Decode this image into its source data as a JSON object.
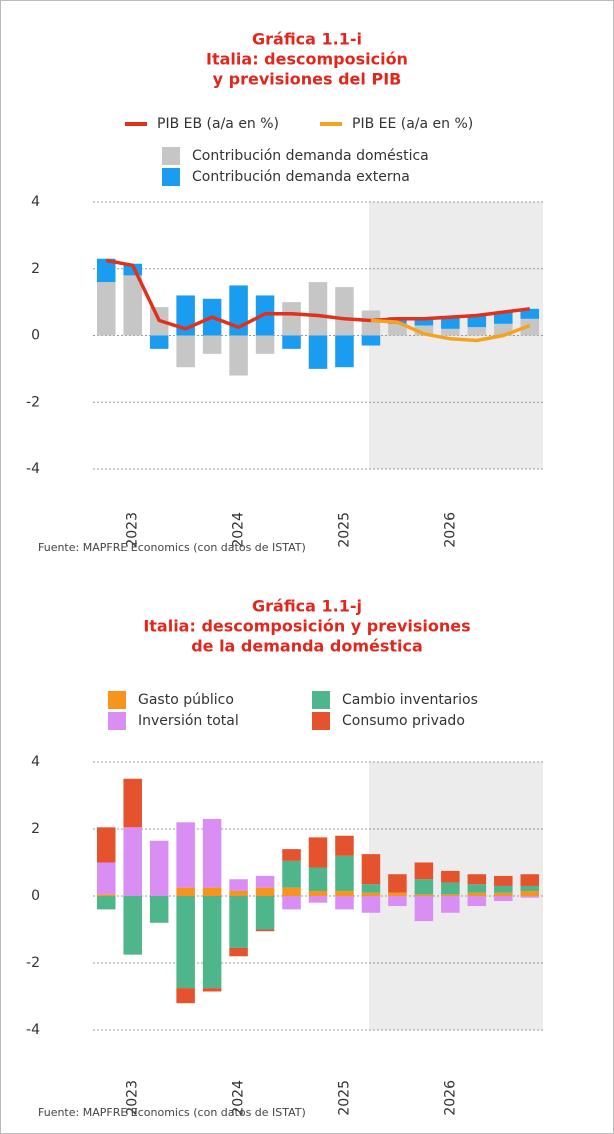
{
  "chart_data": [
    {
      "type": "bar",
      "title": "Gráfica 1.1-i",
      "subtitle": [
        "Italia: descomposición",
        "y previsiones del PIB"
      ],
      "source": "Fuente: MAPFRE Economics (con datos de ISTAT)",
      "categories": [
        null,
        "2023",
        null,
        null,
        null,
        "2024",
        null,
        null,
        null,
        "2025",
        null,
        null,
        null,
        "2026",
        null,
        null,
        null
      ],
      "series": [
        {
          "name": "PIB EB (a/a en %)",
          "type": "line",
          "color": "#e0301e",
          "values": [
            2.25,
            2.1,
            0.45,
            0.2,
            0.55,
            0.25,
            0.65,
            0.65,
            0.6,
            0.5,
            0.45,
            0.5,
            0.5,
            0.55,
            0.6,
            0.7,
            0.8
          ]
        },
        {
          "name": "PIB EE (a/a en %)",
          "type": "line",
          "color": "#f5a21e",
          "values": [
            null,
            null,
            null,
            null,
            null,
            null,
            null,
            null,
            null,
            null,
            0.45,
            0.4,
            0.05,
            -0.1,
            -0.15,
            0.0,
            0.3
          ]
        },
        {
          "name": "Contribución demanda doméstica",
          "type": "bar",
          "color": "#c6c6c6",
          "values": [
            1.6,
            1.8,
            0.85,
            -0.95,
            -0.55,
            -1.2,
            -0.55,
            1.0,
            1.6,
            1.45,
            0.75,
            0.35,
            0.3,
            0.2,
            0.25,
            0.35,
            0.5
          ]
        },
        {
          "name": "Contribución demanda externa",
          "type": "bar",
          "color": "#1a9cf0",
          "values": [
            0.7,
            0.35,
            -0.4,
            1.2,
            1.1,
            1.5,
            1.2,
            -0.4,
            -1.0,
            -0.95,
            -0.3,
            0.2,
            0.2,
            0.35,
            0.35,
            0.35,
            0.3
          ]
        }
      ],
      "ylim": [
        -4,
        4
      ],
      "yticks": [
        4,
        2,
        0,
        -2,
        -4
      ],
      "grid": true
    },
    {
      "type": "bar",
      "title": "Gráfica 1.1-j",
      "subtitle": [
        "Italia: descomposición y previsiones",
        "de la demanda doméstica"
      ],
      "source": "Fuente: MAPFRE Economics (con datos de ISTAT)",
      "categories": [
        null,
        "2023",
        null,
        null,
        null,
        "2024",
        null,
        null,
        null,
        "2025",
        null,
        null,
        null,
        "2026",
        null,
        null,
        null
      ],
      "series": [
        {
          "name": "Gasto público",
          "type": "bar",
          "color": "#f7941d",
          "values": [
            0.05,
            0.0,
            0.0,
            0.25,
            0.25,
            0.15,
            0.25,
            0.25,
            0.15,
            0.15,
            0.1,
            0.1,
            0.05,
            0.05,
            0.1,
            0.1,
            0.15
          ]
        },
        {
          "name": "Inversión total",
          "type": "bar",
          "color": "#d98ef4",
          "values": [
            0.95,
            2.05,
            1.65,
            1.95,
            2.05,
            0.35,
            0.35,
            -0.4,
            -0.2,
            -0.4,
            -0.5,
            -0.3,
            -0.75,
            -0.5,
            -0.3,
            -0.15,
            -0.05
          ]
        },
        {
          "name": "Cambio inventarios",
          "type": "bar",
          "color": "#4fb58b",
          "values": [
            -0.4,
            -1.75,
            -0.8,
            -2.75,
            -2.75,
            -1.55,
            -1.0,
            0.8,
            0.7,
            1.05,
            0.25,
            0.0,
            0.45,
            0.35,
            0.25,
            0.2,
            0.15
          ]
        },
        {
          "name": "Consumo privado",
          "type": "bar",
          "color": "#e5532e",
          "values": [
            1.05,
            1.45,
            0.0,
            -0.45,
            -0.1,
            -0.25,
            -0.05,
            0.35,
            0.9,
            0.6,
            0.9,
            0.55,
            0.5,
            0.35,
            0.3,
            0.3,
            0.35
          ]
        }
      ],
      "ylim": [
        -4,
        4
      ],
      "yticks": [
        4,
        2,
        0,
        -2,
        -4
      ],
      "grid": true
    }
  ]
}
